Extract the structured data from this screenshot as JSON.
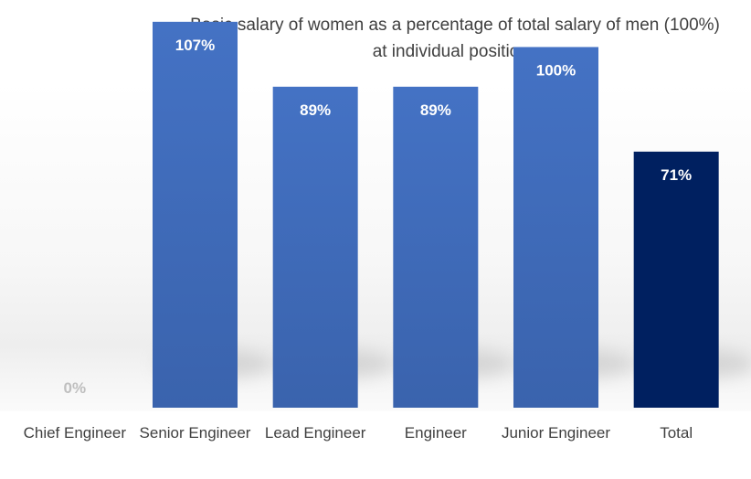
{
  "chart_data": {
    "type": "bar",
    "title": "Basic salary of women as a percentage of total salary of men (100%)",
    "subtitle": "at individual positions",
    "categories": [
      "Chief Engineer",
      "Senior Engineer",
      "Lead Engineer",
      "Engineer",
      "Junior Engineer",
      "Total"
    ],
    "values": [
      0,
      107,
      89,
      89,
      100,
      71
    ],
    "data_labels": [
      "0%",
      "107%",
      "89%",
      "89%",
      "100%",
      "71%"
    ],
    "xlabel": "",
    "ylabel": "",
    "ylim": [
      0,
      110
    ],
    "grid": false,
    "legend": "none",
    "colors": {
      "bar": "#4472c4",
      "highlight_bar": "#002060",
      "text": "#404040",
      "zero_label": "#bfbfbf"
    }
  }
}
